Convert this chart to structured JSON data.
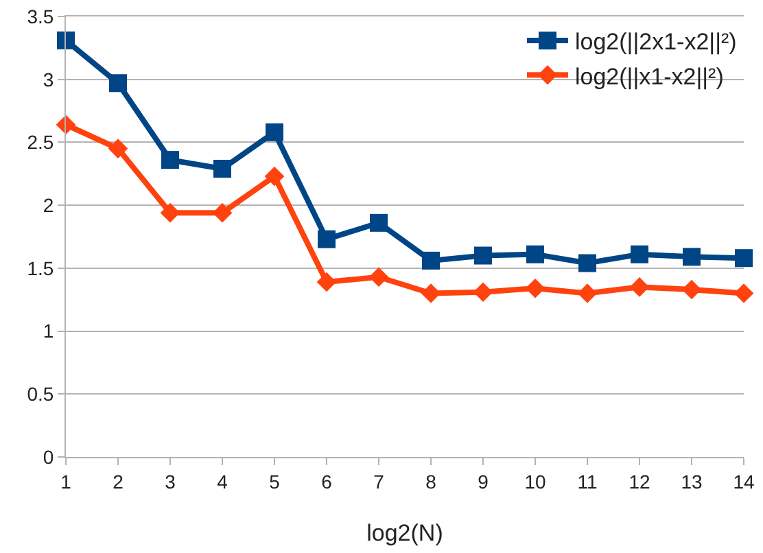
{
  "chart_data": {
    "type": "line",
    "xlabel": "log2(N)",
    "x": [
      1,
      2,
      3,
      4,
      5,
      6,
      7,
      8,
      9,
      10,
      11,
      12,
      13,
      14
    ],
    "series": [
      {
        "name": "log2(||2x1-x2||²)",
        "color": "#004586",
        "marker": "square",
        "values": [
          3.31,
          2.97,
          2.36,
          2.29,
          2.58,
          1.73,
          1.86,
          1.56,
          1.6,
          1.61,
          1.54,
          1.61,
          1.59,
          1.58
        ]
      },
      {
        "name": "log2(||x1-x2||²)",
        "color": "#ff420e",
        "marker": "diamond",
        "values": [
          2.64,
          2.45,
          1.94,
          1.94,
          2.23,
          1.39,
          1.43,
          1.3,
          1.31,
          1.34,
          1.3,
          1.35,
          1.33,
          1.3
        ]
      }
    ],
    "xlim": [
      1,
      14
    ],
    "xticks": [
      1,
      2,
      3,
      4,
      5,
      6,
      7,
      8,
      9,
      10,
      11,
      12,
      13,
      14
    ],
    "ylim": [
      0,
      3.5
    ],
    "yticks": [
      0,
      0.5,
      1,
      1.5,
      2,
      2.5,
      3,
      3.5
    ],
    "grid": "y",
    "legend": "top right",
    "line_style": "solid"
  }
}
